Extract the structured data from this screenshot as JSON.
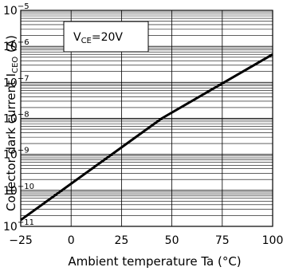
{
  "chart_data": {
    "type": "line",
    "xlabel": "Ambient temperature Ta (°C)",
    "ylabel": {
      "main": "Collector dark current I",
      "sub": "CEO",
      "unit": " (A)"
    },
    "x_ticks": [
      -25,
      0,
      25,
      50,
      75,
      100
    ],
    "x_tick_labels": [
      "−25",
      "0",
      "25",
      "50",
      "75",
      "100"
    ],
    "xlim": [
      -25,
      100
    ],
    "y_scale": "log",
    "ylim": [
      1e-11,
      1e-05
    ],
    "y_ticks": [
      {
        "base": "10",
        "exp": "−11"
      },
      {
        "base": "10",
        "exp": "−10"
      },
      {
        "base": "10",
        "exp": "−9"
      },
      {
        "base": "10",
        "exp": "−8"
      },
      {
        "base": "10",
        "exp": "−7"
      },
      {
        "base": "10",
        "exp": "−6"
      },
      {
        "base": "10",
        "exp": "−5"
      }
    ],
    "annotation": {
      "main": "V",
      "sub": "CE",
      "rest": "=20V"
    },
    "grid": true,
    "series": [
      {
        "x": [
          -25,
          45,
          100
        ],
        "y": [
          1.5e-11,
          1e-08,
          6e-07
        ]
      }
    ]
  }
}
